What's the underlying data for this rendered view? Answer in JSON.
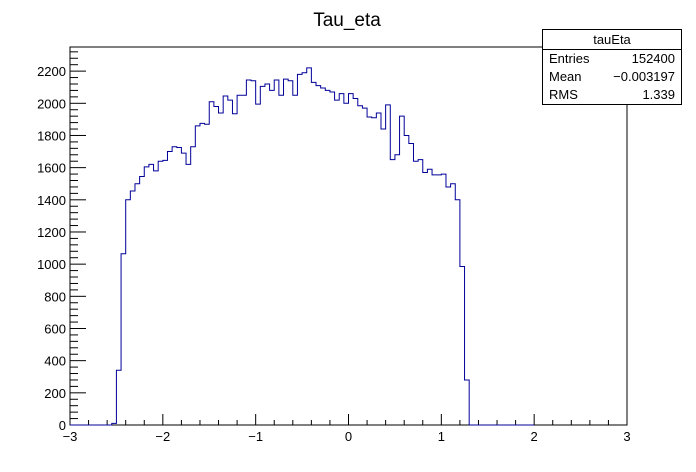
{
  "chart_data": {
    "type": "histogram",
    "title": "Tau_eta",
    "xlim": [
      -3,
      3
    ],
    "ylim": [
      0,
      2350
    ],
    "x_ticks": [
      -3,
      -2,
      -1,
      0,
      1,
      2,
      3
    ],
    "x_tick_labels": [
      "−3",
      "−2",
      "−1",
      "0",
      "1",
      "2",
      "3"
    ],
    "y_ticks": [
      0,
      200,
      400,
      600,
      800,
      1000,
      1200,
      1400,
      1600,
      1800,
      2000,
      2200
    ],
    "y_tick_labels": [
      "0",
      "200",
      "400",
      "600",
      "800",
      "1000",
      "1200",
      "1400",
      "1600",
      "1800",
      "2000",
      "2200"
    ],
    "bin_edges_start": -3.0,
    "bin_width": 0.05,
    "values": [
      0,
      0,
      0,
      0,
      0,
      0,
      0,
      0,
      0,
      10,
      340,
      1065,
      1400,
      1455,
      1500,
      1545,
      1605,
      1620,
      1580,
      1640,
      1645,
      1700,
      1730,
      1725,
      1690,
      1620,
      1730,
      1860,
      1875,
      1870,
      2010,
      1980,
      1940,
      2045,
      2020,
      1935,
      2050,
      2050,
      2145,
      2140,
      1995,
      2105,
      2120,
      2080,
      2145,
      2050,
      2150,
      2140,
      2050,
      2180,
      2190,
      2220,
      2130,
      2110,
      2095,
      2080,
      2070,
      2020,
      2060,
      2000,
      2060,
      2030,
      1985,
      1970,
      1915,
      1910,
      1940,
      1840,
      1990,
      1650,
      1680,
      1920,
      1800,
      1750,
      1640,
      1650,
      1570,
      1590,
      1555,
      1555,
      1560,
      1480,
      1500,
      1400,
      985,
      280,
      0,
      0,
      0,
      0,
      0,
      0,
      0,
      0,
      0,
      0,
      0,
      0,
      0,
      0
    ],
    "line_color": "#000099",
    "grid": false,
    "stats_box": {
      "title": "tauEta",
      "rows": [
        {
          "label": "Entries",
          "value": "152400"
        },
        {
          "label": "Mean",
          "value": "−0.003197"
        },
        {
          "label": "RMS",
          "value": "1.339"
        }
      ],
      "position": "top-right"
    }
  }
}
